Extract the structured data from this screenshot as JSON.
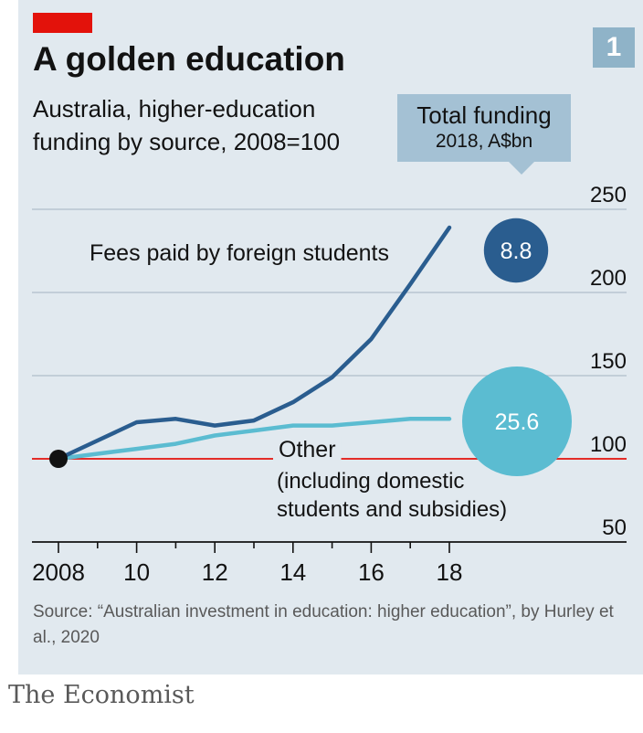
{
  "header": {
    "title": "A golden education",
    "subtitle": "Australia, higher-education funding by source, 2008=100",
    "chart_number": "1"
  },
  "callout": {
    "title": "Total funding",
    "subtitle": "2018, A$bn"
  },
  "footer": {
    "source": "Source: “Australian investment in education: higher education”, by Hurley et al., 2020",
    "brand": "The Economist"
  },
  "colors": {
    "accent_red": "#e3120b",
    "foreign_series": "#2a5d8f",
    "other_series": "#5bbcd1",
    "background": "#e1e9ef"
  },
  "chart_data": {
    "type": "line",
    "title": "A golden education",
    "subtitle": "Australia, higher-education funding by source, 2008=100",
    "x": [
      2008,
      2009,
      2010,
      2011,
      2012,
      2013,
      2014,
      2015,
      2016,
      2017,
      2018
    ],
    "x_ticks": [
      2008,
      2010,
      2012,
      2014,
      2016,
      2018
    ],
    "x_tick_labels": [
      "2008",
      "10",
      "12",
      "14",
      "16",
      "18"
    ],
    "ylim": [
      50,
      250
    ],
    "y_ticks": [
      50,
      100,
      150,
      200,
      250
    ],
    "y_tick_labels": [
      "50",
      "100",
      "150",
      "200",
      "250"
    ],
    "baseline": 100,
    "grid": true,
    "y_axis_side": "right",
    "series": [
      {
        "name": "Fees paid by foreign students",
        "values": [
          100,
          111,
          122,
          124,
          120,
          123,
          134,
          149,
          172,
          205,
          239
        ],
        "total_funding_2018": "8.8"
      },
      {
        "name": "Other",
        "note": "(including domestic students and subsidies)",
        "values": [
          100,
          103,
          106,
          109,
          114,
          117,
          120,
          120,
          122,
          124,
          124
        ],
        "total_funding_2018": "25.6"
      }
    ]
  }
}
